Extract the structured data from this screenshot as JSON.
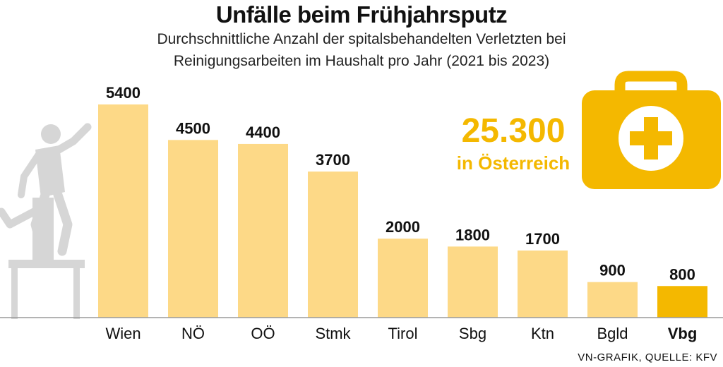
{
  "title": "Unfälle beim Frühjahrsputz",
  "subtitle_line1": "Durchschnittliche Anzahl der spitalsbehandelten Verletzten bei",
  "subtitle_line2": "Reinigungsarbeiten im Haushalt pro Jahr (2021 bis 2023)",
  "total": {
    "value": "25.300",
    "label": "in Österreich"
  },
  "source": "VN-GRAFIK, QUELLE: KFV",
  "icons": [
    "person-on-chair-icon",
    "first-aid-kit-icon"
  ],
  "colors": {
    "bar": "#fdd987",
    "bar_highlight": "#f4b800",
    "accent": "#f4b800",
    "illustration": "#d6d6d6"
  },
  "chart_data": {
    "type": "bar",
    "categories": [
      "Wien",
      "NÖ",
      "OÖ",
      "Stmk",
      "Tirol",
      "Sbg",
      "Ktn",
      "Bgld",
      "Vbg"
    ],
    "values": [
      5400,
      4500,
      4400,
      3700,
      2000,
      1800,
      1700,
      900,
      800
    ],
    "value_labels": [
      "5400",
      "4500",
      "4400",
      "3700",
      "2000",
      "1800",
      "1700",
      "900",
      "800"
    ],
    "highlight_category": "Vbg",
    "ylim": [
      0,
      5400
    ],
    "grid": false,
    "legend": "none"
  }
}
